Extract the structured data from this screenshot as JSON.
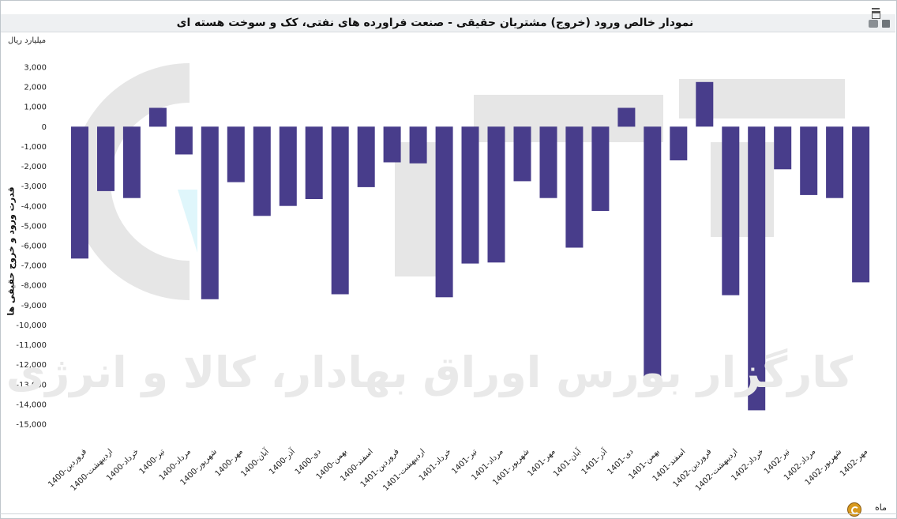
{
  "window": {
    "title": "نمودار خالص ورود (خروج) مشتریان حقیقی - صنعت فراورده های نفتی، کک و سوخت هسته ای",
    "unit_label": "میلیارد ریال",
    "y_axis_label": "قدرت ورود و خروج حقیقی ها",
    "x_axis_label": "ماه",
    "watermark_text": "کارگزار بورس اوراق بهادار، کالا و انرژی",
    "minimize_icon": "minimize-icon",
    "maximize_icon": "maximize-icon",
    "print_icon": "print-icon",
    "save_icon": "save-icon",
    "refresh_icon": "refresh-icon"
  },
  "chart_data": {
    "type": "bar",
    "color": "#483d8b",
    "ylim": [
      -15000,
      3000
    ],
    "yticks": [
      3000,
      2000,
      1000,
      0,
      -1000,
      -2000,
      -3000,
      -4000,
      -5000,
      -6000,
      -7000,
      -8000,
      -9000,
      -10000,
      -11000,
      -12000,
      -13000,
      -14000,
      -15000
    ],
    "ytick_labels": [
      "3,000",
      "2,000",
      "1,000",
      "0",
      "-1,000",
      "-2,000",
      "-3,000",
      "-4,000",
      "-5,000",
      "-6,000",
      "-7,000",
      "-8,000",
      "-9,000",
      "-10,000",
      "-11,000",
      "-12,000",
      "-13,000",
      "-14,000",
      "-15,000"
    ],
    "categories": [
      "1400-فروردین",
      "1400-اردیبهشت",
      "1400-خرداد",
      "1400-تیر",
      "1400-مرداد",
      "1400-شهریور",
      "1400-مهر",
      "1400-آبان",
      "1400-آذر",
      "1400-دی",
      "1400-بهمن",
      "1400-اسفند",
      "1401-فروردین",
      "1401-اردیبهشت",
      "1401-خرداد",
      "1401-تیر",
      "1401-مرداد",
      "1401-شهریور",
      "1401-مهر",
      "1401-آبان",
      "1401-آذر",
      "1401-دی",
      "1401-بهمن",
      "1401-اسفند",
      "1402-فروردین",
      "1402-اردیبهشت",
      "1402-خرداد",
      "1402-تیر",
      "1402-مرداد",
      "1402-شهریور",
      "1402-مهر"
    ],
    "values": [
      -6650,
      -3250,
      -3600,
      950,
      -1400,
      -8700,
      -2800,
      -4500,
      -4000,
      -3650,
      -8450,
      -3050,
      -1800,
      -1850,
      -8600,
      -6900,
      -6850,
      -2750,
      -3600,
      -6100,
      -4250,
      950,
      -12600,
      -1700,
      2250,
      -8500,
      -14300,
      -2150,
      -3450,
      -3600,
      -7850
    ],
    "xlabel": "ماه",
    "ylabel": "قدرت ورود و خروج حقیقی ها",
    "grid": false,
    "legend": "none"
  }
}
